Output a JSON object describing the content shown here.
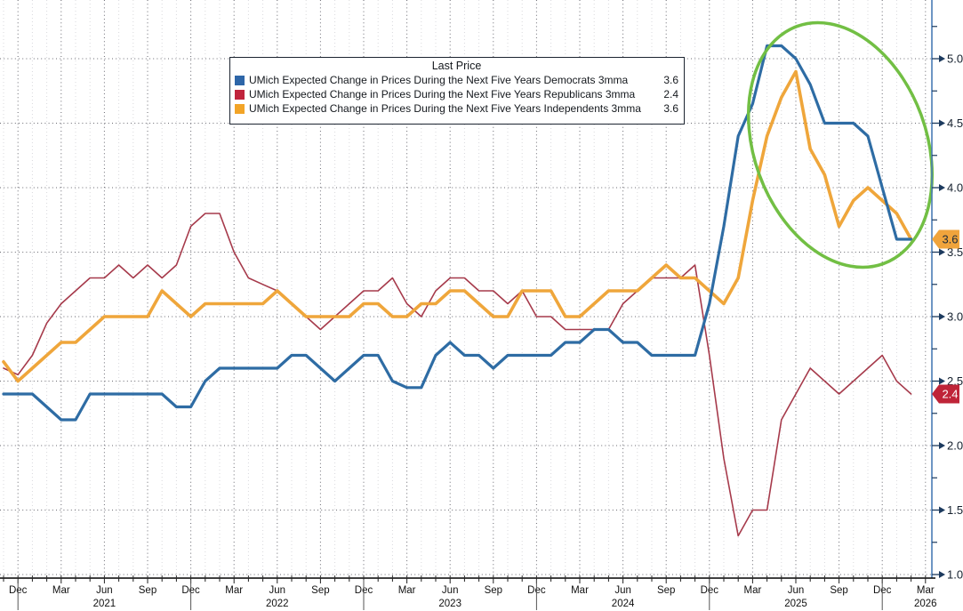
{
  "page": {
    "background": "#ffffff"
  },
  "legend": {
    "title": "Last Price",
    "items": [
      {
        "label": "UMich Expected Change in Prices During the Next Five Years Democrats 3mma",
        "value": "3.6"
      },
      {
        "label": "UMich Expected Change in Prices During the Next Five Years Republicans 3mma",
        "value": "2.4"
      },
      {
        "label": "UMich Expected Change in Prices During the Next Five Years Independents 3mma",
        "value": "3.6"
      }
    ]
  },
  "chart_data": {
    "type": "line",
    "title": "",
    "x_range": {
      "start": "2020-11",
      "end": "2026-03",
      "unit": "month"
    },
    "x_axis": {
      "ticks": [
        {
          "i": 1,
          "label": "Dec"
        },
        {
          "i": 4,
          "label": "Mar"
        },
        {
          "i": 7,
          "label": "Jun"
        },
        {
          "i": 10,
          "label": "Sep"
        },
        {
          "i": 13,
          "label": "Dec"
        },
        {
          "i": 16,
          "label": "Mar"
        },
        {
          "i": 19,
          "label": "Jun"
        },
        {
          "i": 22,
          "label": "Sep"
        },
        {
          "i": 25,
          "label": "Dec"
        },
        {
          "i": 28,
          "label": "Mar"
        },
        {
          "i": 31,
          "label": "Jun"
        },
        {
          "i": 34,
          "label": "Sep"
        },
        {
          "i": 37,
          "label": "Dec"
        },
        {
          "i": 40,
          "label": "Mar"
        },
        {
          "i": 43,
          "label": "Jun"
        },
        {
          "i": 46,
          "label": "Sep"
        },
        {
          "i": 49,
          "label": "Dec"
        },
        {
          "i": 52,
          "label": "Mar"
        },
        {
          "i": 55,
          "label": "Jun"
        },
        {
          "i": 58,
          "label": "Sep"
        },
        {
          "i": 61,
          "label": "Dec"
        },
        {
          "i": 64,
          "label": "Mar"
        }
      ],
      "years": [
        {
          "i": 7,
          "label": "2021"
        },
        {
          "i": 19,
          "label": "2022"
        },
        {
          "i": 31,
          "label": "2023"
        },
        {
          "i": 43,
          "label": "2024"
        },
        {
          "i": 55,
          "label": "2025"
        },
        {
          "i": 64,
          "label": "2026"
        }
      ],
      "year_separators": [
        1,
        13,
        25,
        37,
        49,
        61
      ]
    },
    "y_axis": {
      "min": 1.0,
      "max": 5.0,
      "major_step": 0.5,
      "minor_step": 0.25,
      "labels": [
        "1.0",
        "1.5",
        "2.0",
        "2.5",
        "3.0",
        "3.5",
        "4.0",
        "4.5",
        "5.0"
      ]
    },
    "series": [
      {
        "name": "UMich Expected Change in Prices During the Next Five Years Democrats 3mma",
        "color": "#2e6ca4",
        "swatch": "#2e66a8",
        "width": 3.2,
        "last": "3.6",
        "values": [
          2.4,
          2.4,
          2.4,
          2.3,
          2.2,
          2.2,
          2.4,
          2.4,
          2.4,
          2.4,
          2.4,
          2.4,
          2.3,
          2.3,
          2.5,
          2.6,
          2.6,
          2.6,
          2.6,
          2.6,
          2.7,
          2.7,
          2.6,
          2.5,
          2.6,
          2.7,
          2.7,
          2.5,
          2.45,
          2.45,
          2.7,
          2.8,
          2.7,
          2.7,
          2.6,
          2.7,
          2.7,
          2.7,
          2.7,
          2.8,
          2.8,
          2.9,
          2.9,
          2.8,
          2.8,
          2.7,
          2.7,
          2.7,
          2.7,
          3.1,
          3.7,
          4.4,
          4.65,
          5.1,
          5.1,
          5.0,
          4.8,
          4.5,
          4.5,
          4.5,
          4.4,
          4.0,
          3.6,
          3.6
        ]
      },
      {
        "name": "UMich Expected Change in Prices During the Next Five Years Republicans 3mma",
        "color": "#a63a4b",
        "swatch": "#c0243c",
        "width": 1.6,
        "last": "2.4",
        "values": [
          2.6,
          2.55,
          2.7,
          2.95,
          3.1,
          3.2,
          3.3,
          3.3,
          3.4,
          3.3,
          3.4,
          3.3,
          3.4,
          3.7,
          3.8,
          3.8,
          3.5,
          3.3,
          3.25,
          3.2,
          3.1,
          3.0,
          2.9,
          3.0,
          3.1,
          3.2,
          3.2,
          3.3,
          3.1,
          3.0,
          3.2,
          3.3,
          3.3,
          3.2,
          3.2,
          3.1,
          3.2,
          3.0,
          3.0,
          2.9,
          2.9,
          2.9,
          2.9,
          3.1,
          3.2,
          3.3,
          3.3,
          3.3,
          3.4,
          2.7,
          1.9,
          1.3,
          1.5,
          1.5,
          2.2,
          2.4,
          2.6,
          2.5,
          2.4,
          2.5,
          2.6,
          2.7,
          2.5,
          2.4
        ]
      },
      {
        "name": "UMich Expected Change in Prices During the Next Five Years Independents 3mma",
        "color": "#efa63b",
        "swatch": "#f2a427",
        "width": 3.6,
        "last": "3.6",
        "values": [
          2.65,
          2.5,
          2.6,
          2.7,
          2.8,
          2.8,
          2.9,
          3.0,
          3.0,
          3.0,
          3.0,
          3.2,
          3.1,
          3.0,
          3.1,
          3.1,
          3.1,
          3.1,
          3.1,
          3.2,
          3.1,
          3.0,
          3.0,
          3.0,
          3.0,
          3.1,
          3.1,
          3.0,
          3.0,
          3.1,
          3.1,
          3.2,
          3.2,
          3.1,
          3.0,
          3.0,
          3.2,
          3.2,
          3.2,
          3.0,
          3.0,
          3.1,
          3.2,
          3.2,
          3.2,
          3.3,
          3.4,
          3.3,
          3.3,
          3.2,
          3.1,
          3.3,
          3.9,
          4.4,
          4.7,
          4.9,
          4.3,
          4.1,
          3.7,
          3.9,
          4.0,
          3.9,
          3.8,
          3.6
        ]
      }
    ],
    "badges": [
      {
        "label": "3.6",
        "value": 3.6,
        "fill": "#f0a43c",
        "text": "#1b2a3a"
      },
      {
        "label": "2.4",
        "value": 2.4,
        "fill": "#bf2438",
        "text": "#ffffff"
      }
    ],
    "annotation": {
      "type": "ellipse",
      "color": "#72bf44"
    },
    "style": {
      "axis_line": "#4a7cb5",
      "tick": "#1c3a5e",
      "y_label": "#15202e",
      "x_label": "#111111",
      "x_axis_line": "#000000",
      "grid_major": "#6a6a72",
      "grid_minor": "#d9d9dc",
      "separator": "#555555"
    }
  }
}
